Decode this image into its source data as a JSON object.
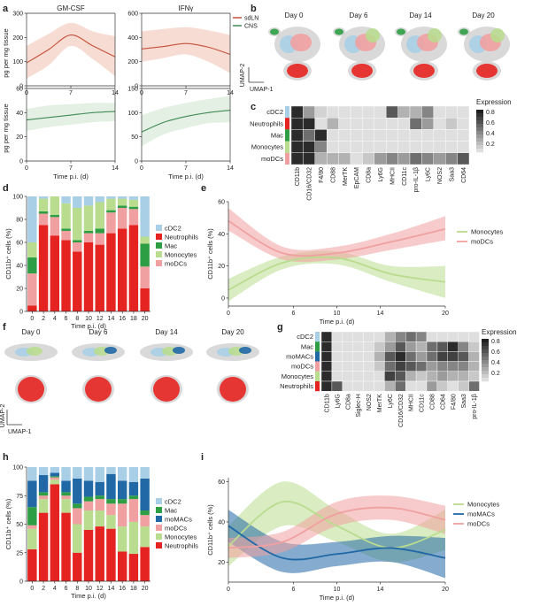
{
  "panel_labels": [
    "a",
    "b",
    "c",
    "d",
    "e",
    "f",
    "g",
    "h",
    "i"
  ],
  "colors": {
    "sdLN": "#c6503a",
    "sdLN_band": "#efc0ad",
    "CNS": "#3d8a52",
    "CNS_band": "#cfe3cf",
    "cDC2": "#a8cfe6",
    "Neutrophils": "#e52320",
    "Mac": "#2e9e45",
    "Monocytes": "#b9dc8f",
    "moDCs": "#f0a0a0",
    "moMACs": "#2068a6",
    "umap_gray": "#cfcfcf"
  },
  "texts": {
    "a_ylabel_top": "pg per mg tissue",
    "a_ylabel_bottom": "pg per mg tissue",
    "a_xlabel": "Time p.i. (d)",
    "b_days": [
      "Day 0",
      "Day 6",
      "Day 14",
      "Day 20"
    ],
    "f_days": [
      "Day 0",
      "Day 6",
      "Day 14",
      "Day 20"
    ],
    "umap_y": "UMAP-2",
    "umap_x": "UMAP-1",
    "expression": "Expression",
    "cd11b_ylabel": "CD11b⁺ cells (%)",
    "time_xlabel": "Time p.i. (d)"
  },
  "chart_data": [
    {
      "id": "a1",
      "type": "line",
      "title": "GM-CSF",
      "series_name": "sdLN",
      "x": [
        0,
        3.5,
        7,
        10.5,
        14
      ],
      "y": [
        95,
        150,
        210,
        165,
        120
      ],
      "band_lower": [
        30,
        85,
        165,
        110,
        40
      ],
      "band_upper": [
        165,
        215,
        260,
        225,
        205
      ],
      "xlim": [
        0,
        14
      ],
      "ylim": [
        0,
        300
      ],
      "xticks": [
        "0",
        "7",
        "14"
      ],
      "yticks": [
        "0",
        "100",
        "200",
        "300"
      ]
    },
    {
      "id": "a2",
      "type": "line",
      "title": "IFNγ",
      "series_name": "sdLN",
      "x": [
        0,
        3.5,
        7,
        10.5,
        14
      ],
      "y": [
        305,
        325,
        350,
        320,
        260
      ],
      "band_lower": [
        200,
        230,
        260,
        200,
        105
      ],
      "band_upper": [
        450,
        470,
        485,
        460,
        420
      ],
      "xlim": [
        0,
        14
      ],
      "ylim": [
        0,
        600
      ],
      "xticks": [
        "0",
        "7",
        "14"
      ],
      "yticks": [
        "0",
        "200",
        "400",
        "600"
      ],
      "legend": [
        "sdLN",
        "CNS"
      ]
    },
    {
      "id": "a3",
      "type": "line",
      "title": "",
      "series_name": "CNS",
      "x": [
        0,
        3.5,
        7,
        10.5,
        14
      ],
      "y": [
        34,
        36,
        38,
        40,
        41
      ],
      "band_lower": [
        25,
        28,
        30,
        32,
        33
      ],
      "band_upper": [
        43,
        46,
        47,
        48,
        48
      ],
      "xlim": [
        0,
        14
      ],
      "ylim": [
        0,
        60
      ],
      "xticks": [
        "0",
        "7",
        "14"
      ],
      "yticks": [
        "0",
        "20",
        "40",
        "60"
      ],
      "xlabel": "Time p.i. (d)"
    },
    {
      "id": "a4",
      "type": "line",
      "title": "",
      "series_name": "CNS",
      "x": [
        0,
        3.5,
        7,
        10.5,
        14
      ],
      "y": [
        60,
        80,
        92,
        100,
        105
      ],
      "band_lower": [
        30,
        55,
        68,
        78,
        80
      ],
      "band_upper": [
        95,
        110,
        120,
        128,
        135
      ],
      "xlim": [
        0,
        14
      ],
      "ylim": [
        0,
        150
      ],
      "xticks": [
        "0",
        "7",
        "14"
      ],
      "yticks": [
        "0",
        "50",
        "100",
        "150"
      ],
      "xlabel": "Time p.i. (d)"
    },
    {
      "id": "c",
      "type": "heatmap",
      "rows": [
        "cDC2",
        "Neutrophils",
        "Mac",
        "Monocytes",
        "moDCs"
      ],
      "columns": [
        "CD11b",
        "CD16/CD32",
        "F4/80",
        "CD88",
        "MerTK",
        "EpCAM",
        "CD8a",
        "Ly6G",
        "MHCII",
        "CD11c",
        "pro-IL-1β",
        "Ly6C",
        "NOS2",
        "Saa3",
        "CD64"
      ],
      "values": [
        [
          0.9,
          0.4,
          0.15,
          0.1,
          0.1,
          0.1,
          0.1,
          0.1,
          0.7,
          0.3,
          0.3,
          0.5,
          0.1,
          0.1,
          0.1
        ],
        [
          0.9,
          0.9,
          0.1,
          0.3,
          0.1,
          0.1,
          0.1,
          0.1,
          0.1,
          0.1,
          0.6,
          0.4,
          0.1,
          0.2,
          0.1
        ],
        [
          0.9,
          0.6,
          0.9,
          0.1,
          0.1,
          0.1,
          0.1,
          0.1,
          0.1,
          0.1,
          0.1,
          0.1,
          0.1,
          0.1,
          0.1
        ],
        [
          0.9,
          0.9,
          0.5,
          0.1,
          0.1,
          0.1,
          0.1,
          0.1,
          0.1,
          0.1,
          0.1,
          0.1,
          0.1,
          0.1,
          0.1
        ],
        [
          0.9,
          0.9,
          0.3,
          0.3,
          0.3,
          0.1,
          0.2,
          0.4,
          0.5,
          0.4,
          0.6,
          0.5,
          0.4,
          0.5,
          0.7
        ]
      ],
      "colorbar_ticks": [
        "0.8",
        "0.6",
        "0.4",
        "0.2"
      ]
    },
    {
      "id": "d",
      "type": "bar",
      "stacked": true,
      "categories": [
        "0",
        "2",
        "4",
        "6",
        "8",
        "10",
        "12",
        "14",
        "16",
        "18",
        "20"
      ],
      "series": [
        {
          "name": "Neutrophils",
          "values": [
            5,
            75,
            66,
            62,
            52,
            60,
            58,
            68,
            72,
            75,
            20
          ]
        },
        {
          "name": "moDCs",
          "values": [
            28,
            10,
            16,
            8,
            8,
            8,
            10,
            18,
            18,
            14,
            19
          ]
        },
        {
          "name": "Mac",
          "values": [
            14,
            2,
            2,
            2,
            2,
            2,
            4,
            2,
            2,
            2,
            20
          ]
        },
        {
          "name": "Monocytes",
          "values": [
            13,
            11,
            16,
            22,
            28,
            22,
            23,
            10,
            6,
            6,
            6
          ]
        },
        {
          "name": "cDC2",
          "values": [
            40,
            2,
            0,
            6,
            10,
            8,
            5,
            2,
            2,
            3,
            35
          ]
        }
      ],
      "legend_order": [
        "cDC2",
        "Neutrophils",
        "Mac",
        "Monocytes",
        "moDCs"
      ],
      "ylim": [
        0,
        100
      ],
      "yticks": [
        "0",
        "20",
        "40",
        "60",
        "80",
        "100"
      ],
      "ylabel": "CD11b⁺ cells (%)",
      "xlabel": "Time p.i. (d)"
    },
    {
      "id": "e",
      "type": "line",
      "x": [
        0,
        5,
        10,
        15,
        20
      ],
      "series": [
        {
          "name": "Monocytes",
          "values": [
            5,
            22,
            25,
            15,
            10
          ],
          "lower": [
            -2,
            18,
            21,
            10,
            0
          ],
          "upper": [
            12,
            26,
            29,
            20,
            20
          ]
        },
        {
          "name": "moDCs",
          "values": [
            48,
            28,
            28,
            35,
            43
          ],
          "lower": [
            42,
            24,
            24,
            30,
            36
          ],
          "upper": [
            56,
            32,
            32,
            40,
            51
          ]
        }
      ],
      "xlim": [
        0,
        20
      ],
      "ylim": [
        -5,
        60
      ],
      "xticks": [
        "0",
        "6",
        "10",
        "14",
        "20"
      ],
      "yticks": [
        "0",
        "20",
        "40",
        "60"
      ],
      "ylabel": "CD11b⁺ cells (%)",
      "xlabel": "Time p.i. (d)"
    },
    {
      "id": "g",
      "type": "heatmap",
      "rows": [
        "cDC2",
        "Mac",
        "moMACs",
        "moDCs",
        "Monocytes",
        "Neutrophils"
      ],
      "columns": [
        "CD11b",
        "Ly6G",
        "CD8a",
        "Siglec-H",
        "NOS2",
        "MerTK",
        "Ly6C",
        "CD16/CD32",
        "MHCII",
        "CD11c",
        "CD88",
        "CD64",
        "F4/80",
        "Saa3",
        "pro-IL-1β"
      ],
      "values": [
        [
          0.9,
          0.1,
          0.1,
          0.1,
          0.1,
          0.1,
          0.3,
          0.5,
          0.6,
          0.5,
          0.1,
          0.1,
          0.1,
          0.1,
          0.1
        ],
        [
          0.9,
          0.1,
          0.1,
          0.1,
          0.1,
          0.2,
          0.4,
          0.7,
          0.4,
          0.3,
          0.6,
          0.7,
          0.9,
          0.5,
          0.2
        ],
        [
          0.9,
          0.1,
          0.1,
          0.1,
          0.1,
          0.3,
          0.7,
          0.9,
          0.6,
          0.4,
          0.6,
          0.8,
          0.8,
          0.7,
          0.3
        ],
        [
          0.9,
          0.1,
          0.1,
          0.1,
          0.1,
          0.2,
          0.6,
          0.8,
          0.7,
          0.6,
          0.4,
          0.5,
          0.5,
          0.5,
          0.3
        ],
        [
          0.9,
          0.1,
          0.1,
          0.1,
          0.1,
          0.1,
          0.8,
          0.7,
          0.3,
          0.2,
          0.3,
          0.4,
          0.3,
          0.3,
          0.2
        ],
        [
          0.9,
          0.7,
          0.1,
          0.1,
          0.1,
          0.1,
          0.3,
          0.6,
          0.1,
          0.1,
          0.4,
          0.2,
          0.1,
          0.2,
          0.6
        ]
      ],
      "colorbar_ticks": [
        "0.8",
        "0.6",
        "0.4",
        "0.2"
      ]
    },
    {
      "id": "h",
      "type": "bar",
      "stacked": true,
      "categories": [
        "0",
        "2",
        "4",
        "6",
        "8",
        "10",
        "12",
        "14",
        "16",
        "18",
        "20"
      ],
      "series": [
        {
          "name": "Neutrophils",
          "values": [
            28,
            60,
            85,
            60,
            25,
            45,
            48,
            46,
            26,
            24,
            30
          ]
        },
        {
          "name": "Monocytes",
          "values": [
            18,
            12,
            4,
            12,
            25,
            17,
            14,
            12,
            22,
            28,
            18
          ]
        },
        {
          "name": "moDCs",
          "values": [
            3,
            3,
            2,
            3,
            14,
            8,
            10,
            10,
            20,
            20,
            10
          ]
        },
        {
          "name": "Mac",
          "values": [
            16,
            3,
            1,
            3,
            4,
            4,
            3,
            4,
            4,
            3,
            4
          ]
        },
        {
          "name": "moMACs",
          "values": [
            23,
            15,
            3,
            10,
            22,
            14,
            12,
            22,
            16,
            12,
            28
          ]
        },
        {
          "name": "cDC2",
          "values": [
            12,
            7,
            5,
            12,
            10,
            12,
            13,
            6,
            12,
            13,
            10
          ]
        }
      ],
      "legend_order": [
        "cDC2",
        "Mac",
        "moMACs",
        "moDCs",
        "Monocytes",
        "Neutrophils"
      ],
      "ylim": [
        0,
        100
      ],
      "yticks": [
        "0",
        "25",
        "50",
        "75",
        "100"
      ],
      "ylabel": "CD11b⁺ cells (%)",
      "xlabel": "Time p.i. (d)"
    },
    {
      "id": "i",
      "type": "line",
      "x": [
        0,
        5,
        10,
        15,
        20
      ],
      "series": [
        {
          "name": "Monocytes",
          "values": [
            28,
            50,
            38,
            27,
            36
          ],
          "lower": [
            18,
            38,
            30,
            20,
            26
          ],
          "upper": [
            38,
            60,
            46,
            34,
            46
          ]
        },
        {
          "name": "moMACs",
          "values": [
            38,
            22,
            24,
            27,
            22
          ],
          "lower": [
            30,
            15,
            18,
            20,
            12
          ],
          "upper": [
            46,
            30,
            30,
            33,
            32
          ]
        },
        {
          "name": "moDCs",
          "values": [
            27,
            30,
            44,
            47,
            41
          ],
          "lower": [
            22,
            25,
            38,
            41,
            34
          ],
          "upper": [
            32,
            35,
            50,
            53,
            48
          ]
        }
      ],
      "xlim": [
        0,
        20
      ],
      "ylim": [
        10,
        62
      ],
      "xticks": [
        "0",
        "6",
        "10",
        "14",
        "20"
      ],
      "yticks": [
        "20",
        "40",
        "60"
      ],
      "ylabel": "CD11b⁺ cells (%)",
      "xlabel": "Time p.i. (d)"
    }
  ]
}
